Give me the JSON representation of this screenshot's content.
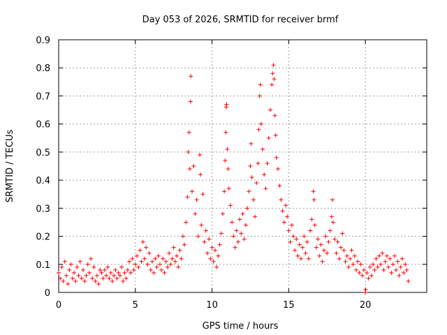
{
  "chart_data": {
    "type": "scatter",
    "title": "Day 053 of 2026, SRMTID for receiver brmf",
    "xlabel": "GPS time / hours",
    "ylabel": "SRMTID / TECUs",
    "xlim": [
      0,
      24
    ],
    "ylim": [
      0,
      0.9
    ],
    "xticks": [
      0,
      5,
      10,
      15,
      20
    ],
    "yticks": [
      0,
      0.1,
      0.2,
      0.3,
      0.4,
      0.5,
      0.6,
      0.7,
      0.8,
      0.9
    ],
    "xtick_labels": [
      "0",
      "5",
      "10",
      "15",
      "20"
    ],
    "ytick_labels": [
      "0",
      "0.1",
      "0.2",
      "0.3",
      "0.4",
      "0.5",
      "0.6",
      "0.7",
      "0.8",
      "0.9"
    ],
    "grid": true,
    "marker": "+",
    "color": "#ff0000",
    "series": [
      {
        "name": "SRMTID",
        "points": [
          [
            0.0,
            0.07
          ],
          [
            0.1,
            0.05
          ],
          [
            0.2,
            0.09
          ],
          [
            0.3,
            0.04
          ],
          [
            0.4,
            0.11
          ],
          [
            0.5,
            0.06
          ],
          [
            0.6,
            0.03
          ],
          [
            0.7,
            0.08
          ],
          [
            0.8,
            0.1
          ],
          [
            0.9,
            0.05
          ],
          [
            1.0,
            0.07
          ],
          [
            1.1,
            0.04
          ],
          [
            1.2,
            0.09
          ],
          [
            1.3,
            0.06
          ],
          [
            1.4,
            0.11
          ],
          [
            1.5,
            0.05
          ],
          [
            1.6,
            0.08
          ],
          [
            1.7,
            0.04
          ],
          [
            1.8,
            0.06
          ],
          [
            1.9,
            0.1
          ],
          [
            2.0,
            0.07
          ],
          [
            2.1,
            0.12
          ],
          [
            2.2,
            0.05
          ],
          [
            2.3,
            0.09
          ],
          [
            2.4,
            0.04
          ],
          [
            2.5,
            0.06
          ],
          [
            2.6,
            0.03
          ],
          [
            2.7,
            0.08
          ],
          [
            2.8,
            0.07
          ],
          [
            2.9,
            0.05
          ],
          [
            3.0,
            0.08
          ],
          [
            3.1,
            0.06
          ],
          [
            3.2,
            0.09
          ],
          [
            3.3,
            0.05
          ],
          [
            3.4,
            0.07
          ],
          [
            3.5,
            0.04
          ],
          [
            3.6,
            0.06
          ],
          [
            3.7,
            0.08
          ],
          [
            3.8,
            0.05
          ],
          [
            3.9,
            0.07
          ],
          [
            4.0,
            0.06
          ],
          [
            4.1,
            0.09
          ],
          [
            4.2,
            0.04
          ],
          [
            4.3,
            0.07
          ],
          [
            4.4,
            0.05
          ],
          [
            4.5,
            0.08
          ],
          [
            4.6,
            0.11
          ],
          [
            4.7,
            0.07
          ],
          [
            4.8,
            0.12
          ],
          [
            4.9,
            0.08
          ],
          [
            5.0,
            0.1
          ],
          [
            5.1,
            0.13
          ],
          [
            5.2,
            0.09
          ],
          [
            5.3,
            0.15
          ],
          [
            5.4,
            0.11
          ],
          [
            5.5,
            0.18
          ],
          [
            5.6,
            0.12
          ],
          [
            5.7,
            0.16
          ],
          [
            5.8,
            0.1
          ],
          [
            5.9,
            0.14
          ],
          [
            6.0,
            0.08
          ],
          [
            6.1,
            0.11
          ],
          [
            6.2,
            0.07
          ],
          [
            6.3,
            0.12
          ],
          [
            6.4,
            0.09
          ],
          [
            6.5,
            0.13
          ],
          [
            6.6,
            0.1
          ],
          [
            6.7,
            0.08
          ],
          [
            6.8,
            0.12
          ],
          [
            6.9,
            0.07
          ],
          [
            7.0,
            0.11
          ],
          [
            7.1,
            0.09
          ],
          [
            7.2,
            0.14
          ],
          [
            7.3,
            0.1
          ],
          [
            7.4,
            0.12
          ],
          [
            7.5,
            0.16
          ],
          [
            7.6,
            0.11
          ],
          [
            7.7,
            0.13
          ],
          [
            7.8,
            0.09
          ],
          [
            7.9,
            0.15
          ],
          [
            8.0,
            0.12
          ],
          [
            8.1,
            0.2
          ],
          [
            8.2,
            0.17
          ],
          [
            8.3,
            0.25
          ],
          [
            8.4,
            0.34
          ],
          [
            8.45,
            0.5
          ],
          [
            8.5,
            0.57
          ],
          [
            8.55,
            0.44
          ],
          [
            8.6,
            0.68
          ],
          [
            8.62,
            0.77
          ],
          [
            8.7,
            0.36
          ],
          [
            8.8,
            0.45
          ],
          [
            8.9,
            0.28
          ],
          [
            9.0,
            0.33
          ],
          [
            9.1,
            0.2
          ],
          [
            9.2,
            0.49
          ],
          [
            9.25,
            0.42
          ],
          [
            9.3,
            0.24
          ],
          [
            9.4,
            0.35
          ],
          [
            9.5,
            0.18
          ],
          [
            9.6,
            0.22
          ],
          [
            9.7,
            0.14
          ],
          [
            9.8,
            0.19
          ],
          [
            9.9,
            0.12
          ],
          [
            10.0,
            0.16
          ],
          [
            10.1,
            0.11
          ],
          [
            10.2,
            0.15
          ],
          [
            10.3,
            0.09
          ],
          [
            10.4,
            0.13
          ],
          [
            10.5,
            0.17
          ],
          [
            10.6,
            0.21
          ],
          [
            10.7,
            0.28
          ],
          [
            10.8,
            0.36
          ],
          [
            10.85,
            0.47
          ],
          [
            10.9,
            0.57
          ],
          [
            10.92,
            0.66
          ],
          [
            10.95,
            0.67
          ],
          [
            11.0,
            0.51
          ],
          [
            11.05,
            0.44
          ],
          [
            11.1,
            0.37
          ],
          [
            11.2,
            0.31
          ],
          [
            11.3,
            0.25
          ],
          [
            11.4,
            0.2
          ],
          [
            11.5,
            0.16
          ],
          [
            11.6,
            0.22
          ],
          [
            11.7,
            0.18
          ],
          [
            11.8,
            0.26
          ],
          [
            11.9,
            0.21
          ],
          [
            12.0,
            0.28
          ],
          [
            12.1,
            0.19
          ],
          [
            12.2,
            0.24
          ],
          [
            12.3,
            0.3
          ],
          [
            12.4,
            0.36
          ],
          [
            12.5,
            0.45
          ],
          [
            12.55,
            0.53
          ],
          [
            12.6,
            0.41
          ],
          [
            12.7,
            0.33
          ],
          [
            12.8,
            0.27
          ],
          [
            12.9,
            0.39
          ],
          [
            13.0,
            0.46
          ],
          [
            13.05,
            0.58
          ],
          [
            13.1,
            0.7
          ],
          [
            13.15,
            0.74
          ],
          [
            13.2,
            0.6
          ],
          [
            13.3,
            0.51
          ],
          [
            13.4,
            0.42
          ],
          [
            13.5,
            0.37
          ],
          [
            13.6,
            0.46
          ],
          [
            13.7,
            0.55
          ],
          [
            13.8,
            0.65
          ],
          [
            13.9,
            0.74
          ],
          [
            13.95,
            0.78
          ],
          [
            14.0,
            0.81
          ],
          [
            14.05,
            0.76
          ],
          [
            14.1,
            0.63
          ],
          [
            14.15,
            0.56
          ],
          [
            14.2,
            0.48
          ],
          [
            14.3,
            0.44
          ],
          [
            14.4,
            0.38
          ],
          [
            14.5,
            0.33
          ],
          [
            14.6,
            0.29
          ],
          [
            14.7,
            0.25
          ],
          [
            14.8,
            0.31
          ],
          [
            14.9,
            0.27
          ],
          [
            15.0,
            0.22
          ],
          [
            15.1,
            0.18
          ],
          [
            15.2,
            0.24
          ],
          [
            15.3,
            0.2
          ],
          [
            15.4,
            0.15
          ],
          [
            15.5,
            0.19
          ],
          [
            15.6,
            0.13
          ],
          [
            15.7,
            0.17
          ],
          [
            15.8,
            0.12
          ],
          [
            15.9,
            0.16
          ],
          [
            16.0,
            0.2
          ],
          [
            16.1,
            0.14
          ],
          [
            16.2,
            0.18
          ],
          [
            16.3,
            0.12
          ],
          [
            16.4,
            0.22
          ],
          [
            16.5,
            0.26
          ],
          [
            16.6,
            0.36
          ],
          [
            16.65,
            0.33
          ],
          [
            16.7,
            0.24
          ],
          [
            16.8,
            0.16
          ],
          [
            16.9,
            0.19
          ],
          [
            17.0,
            0.13
          ],
          [
            17.1,
            0.17
          ],
          [
            17.2,
            0.11
          ],
          [
            17.3,
            0.15
          ],
          [
            17.4,
            0.2
          ],
          [
            17.5,
            0.14
          ],
          [
            17.6,
            0.18
          ],
          [
            17.7,
            0.22
          ],
          [
            17.8,
            0.27
          ],
          [
            17.85,
            0.33
          ],
          [
            17.9,
            0.25
          ],
          [
            18.0,
            0.19
          ],
          [
            18.1,
            0.14
          ],
          [
            18.2,
            0.18
          ],
          [
            18.3,
            0.12
          ],
          [
            18.4,
            0.16
          ],
          [
            18.5,
            0.21
          ],
          [
            18.6,
            0.15
          ],
          [
            18.7,
            0.11
          ],
          [
            18.8,
            0.13
          ],
          [
            18.9,
            0.09
          ],
          [
            19.0,
            0.12
          ],
          [
            19.1,
            0.15
          ],
          [
            19.2,
            0.1
          ],
          [
            19.3,
            0.13
          ],
          [
            19.4,
            0.08
          ],
          [
            19.5,
            0.11
          ],
          [
            19.6,
            0.07
          ],
          [
            19.7,
            0.1
          ],
          [
            19.8,
            0.06
          ],
          [
            19.9,
            0.08
          ],
          [
            20.0,
            0.0
          ],
          [
            20.02,
            0.01
          ],
          [
            20.1,
            0.07
          ],
          [
            20.2,
            0.05
          ],
          [
            20.3,
            0.09
          ],
          [
            20.4,
            0.06
          ],
          [
            20.5,
            0.1
          ],
          [
            20.6,
            0.08
          ],
          [
            20.7,
            0.12
          ],
          [
            20.8,
            0.09
          ],
          [
            20.9,
            0.13
          ],
          [
            21.0,
            0.1
          ],
          [
            21.1,
            0.14
          ],
          [
            21.2,
            0.08
          ],
          [
            21.3,
            0.11
          ],
          [
            21.4,
            0.13
          ],
          [
            21.5,
            0.09
          ],
          [
            21.6,
            0.12
          ],
          [
            21.7,
            0.07
          ],
          [
            21.8,
            0.1
          ],
          [
            21.9,
            0.13
          ],
          [
            22.0,
            0.08
          ],
          [
            22.1,
            0.11
          ],
          [
            22.2,
            0.06
          ],
          [
            22.3,
            0.09
          ],
          [
            22.4,
            0.12
          ],
          [
            22.5,
            0.07
          ],
          [
            22.6,
            0.1
          ],
          [
            22.7,
            0.08
          ],
          [
            22.8,
            0.04
          ]
        ]
      }
    ]
  }
}
